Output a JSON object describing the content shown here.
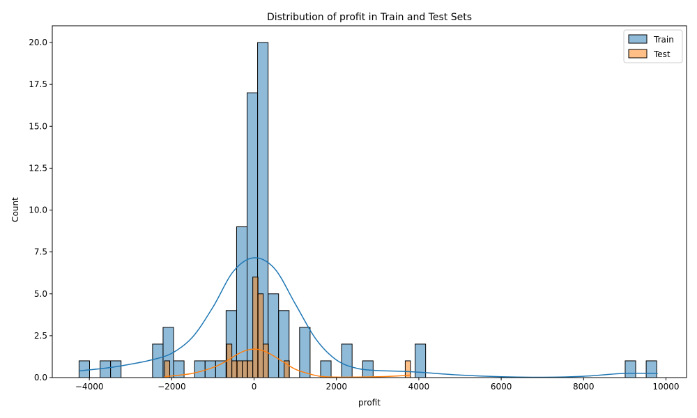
{
  "chart_data": {
    "type": "histogram",
    "title": "Distribution of profit in Train and Test Sets",
    "xlabel": "profit",
    "ylabel": "Count",
    "xlim": [
      -4900,
      10500
    ],
    "ylim": [
      0,
      21
    ],
    "x_ticks": [
      -4000,
      -2000,
      0,
      2000,
      4000,
      6000,
      8000,
      10000
    ],
    "y_ticks": [
      0.0,
      2.5,
      5.0,
      7.5,
      10.0,
      12.5,
      15.0,
      17.5,
      20.0
    ],
    "legend_position": "top-right",
    "series": [
      {
        "name": "Train",
        "color": "#1f77b4",
        "bin_width": 255,
        "bins": [
          {
            "x0": -4250,
            "count": 1
          },
          {
            "x0": -3740,
            "count": 1
          },
          {
            "x0": -3485,
            "count": 1
          },
          {
            "x0": -2465,
            "count": 2
          },
          {
            "x0": -2210,
            "count": 3
          },
          {
            "x0": -1955,
            "count": 1
          },
          {
            "x0": -1445,
            "count": 1
          },
          {
            "x0": -1190,
            "count": 1
          },
          {
            "x0": -935,
            "count": 1
          },
          {
            "x0": -680,
            "count": 4
          },
          {
            "x0": -425,
            "count": 9
          },
          {
            "x0": -170,
            "count": 17
          },
          {
            "x0": 85,
            "count": 20
          },
          {
            "x0": 340,
            "count": 5
          },
          {
            "x0": 595,
            "count": 4
          },
          {
            "x0": 1105,
            "count": 3
          },
          {
            "x0": 1615,
            "count": 1
          },
          {
            "x0": 2125,
            "count": 2
          },
          {
            "x0": 2635,
            "count": 1
          },
          {
            "x0": 3910,
            "count": 2
          },
          {
            "x0": 9010,
            "count": 1
          },
          {
            "x0": 9520,
            "count": 1
          }
        ],
        "kde": {
          "x": [
            -4250,
            -3500,
            -3000,
            -2500,
            -2000,
            -1500,
            -1000,
            -500,
            0,
            500,
            1000,
            1500,
            2000,
            2500,
            3000,
            3500,
            4000,
            5000,
            6000,
            7000,
            8000,
            9000,
            9800
          ],
          "y": [
            0.4,
            0.6,
            0.8,
            1.05,
            1.45,
            2.4,
            4.2,
            6.35,
            7.15,
            6.5,
            4.4,
            2.3,
            1.05,
            0.55,
            0.42,
            0.38,
            0.32,
            0.15,
            0.05,
            0.02,
            0.08,
            0.25,
            0.25
          ]
        }
      },
      {
        "name": "Test",
        "color": "#ff7f0e",
        "bin_width": 127,
        "bins": [
          {
            "x0": -2175,
            "count": 1
          },
          {
            "x0": -667,
            "count": 2
          },
          {
            "x0": -540,
            "count": 1
          },
          {
            "x0": -413,
            "count": 1
          },
          {
            "x0": -286,
            "count": 1
          },
          {
            "x0": -159,
            "count": 1
          },
          {
            "x0": -32,
            "count": 6
          },
          {
            "x0": 95,
            "count": 5
          },
          {
            "x0": 222,
            "count": 2
          },
          {
            "x0": 730,
            "count": 1
          },
          {
            "x0": 3670,
            "count": 1
          }
        ],
        "kde": {
          "x": [
            -2175,
            -2000,
            -1500,
            -1000,
            -700,
            -400,
            -200,
            0,
            200,
            400,
            700,
            1000,
            1300,
            1600,
            2000,
            2500,
            3000,
            3500,
            3800
          ],
          "y": [
            0.05,
            0.1,
            0.25,
            0.6,
            0.95,
            1.4,
            1.62,
            1.7,
            1.62,
            1.4,
            0.95,
            0.5,
            0.25,
            0.08,
            0.03,
            0.03,
            0.05,
            0.1,
            0.15
          ]
        }
      }
    ]
  }
}
